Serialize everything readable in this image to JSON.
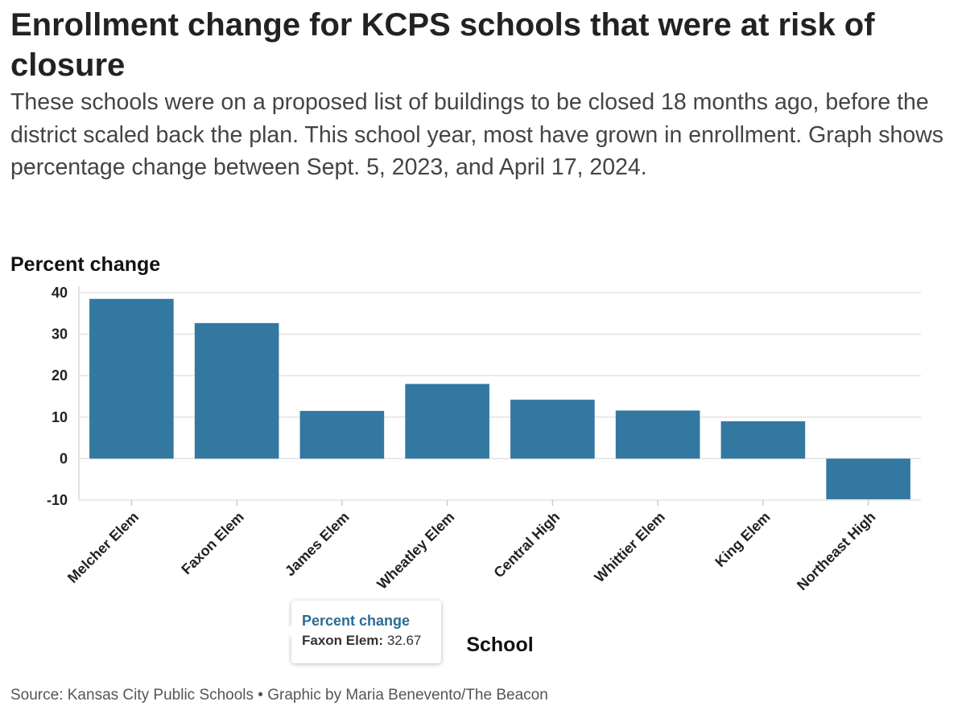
{
  "title": "Enrollment change for KCPS schools that were at risk of closure",
  "subtitle": "These schools were on a proposed list of buildings to be closed 18 months ago, before the district scaled back the plan. This school year, most have grown in enrollment. Graph shows percentage change between Sept. 5, 2023, and April 17, 2024.",
  "source": "Source: Kansas City Public Schools • Graphic by Maria Benevento/The Beacon",
  "colors": {
    "bar": "#3378a1",
    "tooltip_title": "#2b6b95",
    "grid": "#e3e3e3"
  },
  "tooltip": {
    "title": "Percent change",
    "label": "Faxon Elem:",
    "value": "32.67"
  },
  "chart_data": {
    "type": "bar",
    "ylabel": "Percent change",
    "xlabel": "School",
    "ylim": [
      -10,
      40
    ],
    "yticks": [
      40,
      30,
      20,
      10,
      0,
      -10
    ],
    "grid": true,
    "categories": [
      "Melcher Elem",
      "Faxon Elem",
      "James Elem",
      "Wheatley Elem",
      "Central High",
      "Whittier Elem",
      "King Elem",
      "Northeast High"
    ],
    "series": [
      {
        "values": [
          38.5,
          32.67,
          11.5,
          18.0,
          14.2,
          11.6,
          9.0,
          -9.8
        ]
      }
    ]
  }
}
